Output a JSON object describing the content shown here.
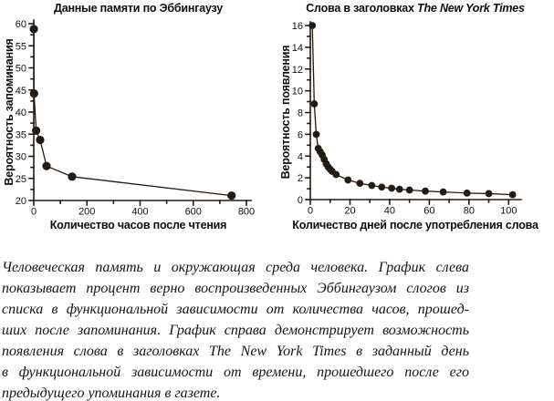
{
  "page": {
    "background": "#ffffff",
    "ink": "#251a10",
    "text_color": "#0f0d0b"
  },
  "chart_data": [
    {
      "type": "line",
      "title": "Данные памяти по Эббингаузу",
      "title_italic": "",
      "xlabel": "Количество часов после чтения",
      "ylabel": "Вероятность запоминания",
      "x": [
        0.3,
        1,
        9,
        24,
        48,
        144,
        744
      ],
      "y": [
        58.8,
        44.2,
        35.8,
        33.7,
        27.8,
        25.4,
        21.1
      ],
      "xlim": [
        0,
        800
      ],
      "ylim": [
        20,
        60
      ],
      "xticks": [
        0,
        200,
        400,
        600,
        800
      ],
      "yticks": [
        20,
        25,
        30,
        35,
        40,
        45,
        50,
        55,
        60
      ],
      "x_minor_step": 100,
      "y_minor_step": 2.5,
      "grid": "off",
      "legend": "none",
      "ink": "#251a10"
    },
    {
      "type": "line",
      "title": "Слова в заголовках ",
      "title_italic": "The New York Times",
      "xlabel": "Количество дней после употребления слова",
      "ylabel": "Вероятность появления",
      "x": [
        1,
        2,
        3,
        4,
        5,
        6,
        7,
        8,
        9,
        10,
        11,
        13,
        19,
        25,
        31,
        36,
        41,
        45,
        50,
        58,
        67,
        79,
        90,
        102
      ],
      "y": [
        16.0,
        8.8,
        6.0,
        4.7,
        4.4,
        4.1,
        3.7,
        3.3,
        3.0,
        2.8,
        2.6,
        2.3,
        1.8,
        1.5,
        1.3,
        1.15,
        1.05,
        0.95,
        0.88,
        0.78,
        0.7,
        0.6,
        0.55,
        0.45
      ],
      "xlim": [
        0,
        104
      ],
      "ylim": [
        0,
        16
      ],
      "xticks": [
        0,
        20,
        40,
        60,
        80,
        100
      ],
      "yticks": [
        0,
        2,
        4,
        6,
        8,
        10,
        12,
        14,
        16
      ],
      "x_minor_step": 10,
      "y_minor_step": 1,
      "grid": "off",
      "legend": "none",
      "ink": "#251a10"
    }
  ],
  "caption": {
    "lines": [
      "Человеческая память и окружающая среда человека. График слева",
      "показывает процент верно воспроизведенных Эббингаузом слогов из",
      "списка в функциональной зависимости от количества часов, прошед-",
      "ших после запоминания. График справа демонстрирует возможность",
      "появления слова в заголовках The New York Times в заданный день",
      "в функциональной зависимости от времени, прошедшего после его",
      "предыдущего упоминания в газете."
    ]
  }
}
